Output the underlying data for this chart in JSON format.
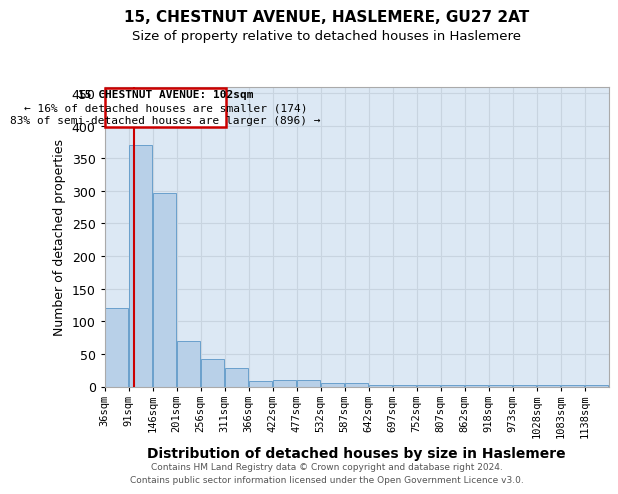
{
  "title": "15, CHESTNUT AVENUE, HASLEMERE, GU27 2AT",
  "subtitle": "Size of property relative to detached houses in Haslemere",
  "xlabel": "Distribution of detached houses by size in Haslemere",
  "ylabel": "Number of detached properties",
  "footer_line1": "Contains HM Land Registry data © Crown copyright and database right 2024.",
  "footer_line2": "Contains public sector information licensed under the Open Government Licence v3.0.",
  "categories": [
    "36sqm",
    "91sqm",
    "146sqm",
    "201sqm",
    "256sqm",
    "311sqm",
    "366sqm",
    "422sqm",
    "477sqm",
    "532sqm",
    "587sqm",
    "642sqm",
    "697sqm",
    "752sqm",
    "807sqm",
    "862sqm",
    "918sqm",
    "973sqm",
    "1028sqm",
    "1083sqm",
    "1138sqm"
  ],
  "values": [
    120,
    370,
    297,
    70,
    42,
    28,
    8,
    10,
    10,
    5,
    5,
    2,
    2,
    2,
    2,
    2,
    2,
    2,
    2,
    2,
    2
  ],
  "bar_color": "#b8d0e8",
  "bar_edge_color": "#6aa0cc",
  "grid_color": "#c8d4e0",
  "background_color": "#dce8f4",
  "annotation_box_color": "#ffffff",
  "annotation_border_color": "#cc0000",
  "property_line_color": "#cc0000",
  "property_value": 102,
  "property_label": "15 CHESTNUT AVENUE: 102sqm",
  "annotation_line1": "← 16% of detached houses are smaller (174)",
  "annotation_line2": "83% of semi-detached houses are larger (896) →",
  "ylim": [
    0,
    460
  ],
  "yticks": [
    0,
    50,
    100,
    150,
    200,
    250,
    300,
    350,
    400,
    450
  ],
  "bin_width": 55
}
